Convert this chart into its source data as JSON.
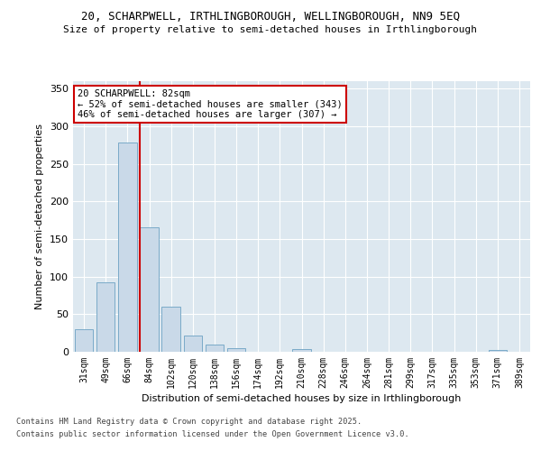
{
  "title_line1": "20, SCHARPWELL, IRTHLINGBOROUGH, WELLINGBOROUGH, NN9 5EQ",
  "title_line2": "Size of property relative to semi-detached houses in Irthlingborough",
  "xlabel": "Distribution of semi-detached houses by size in Irthlingborough",
  "ylabel": "Number of semi-detached properties",
  "categories": [
    "31sqm",
    "49sqm",
    "66sqm",
    "84sqm",
    "102sqm",
    "120sqm",
    "138sqm",
    "156sqm",
    "174sqm",
    "192sqm",
    "210sqm",
    "228sqm",
    "246sqm",
    "264sqm",
    "281sqm",
    "299sqm",
    "317sqm",
    "335sqm",
    "353sqm",
    "371sqm",
    "389sqm"
  ],
  "values": [
    30,
    93,
    278,
    166,
    60,
    22,
    10,
    5,
    0,
    0,
    4,
    0,
    0,
    0,
    0,
    0,
    0,
    0,
    0,
    2,
    0
  ],
  "bar_color": "#c9d9e8",
  "bar_edge_color": "#7aaac8",
  "annotation_text_line1": "20 SCHARPWELL: 82sqm",
  "annotation_text_line2": "← 52% of semi-detached houses are smaller (343)",
  "annotation_text_line3": "46% of semi-detached houses are larger (307) →",
  "vline_color": "#cc0000",
  "annotation_box_color": "#cc0000",
  "grid_color": "#d0d8e8",
  "background_color": "#dde8f0",
  "ylim": [
    0,
    360
  ],
  "yticks": [
    0,
    50,
    100,
    150,
    200,
    250,
    300,
    350
  ],
  "footer_line1": "Contains HM Land Registry data © Crown copyright and database right 2025.",
  "footer_line2": "Contains public sector information licensed under the Open Government Licence v3.0."
}
